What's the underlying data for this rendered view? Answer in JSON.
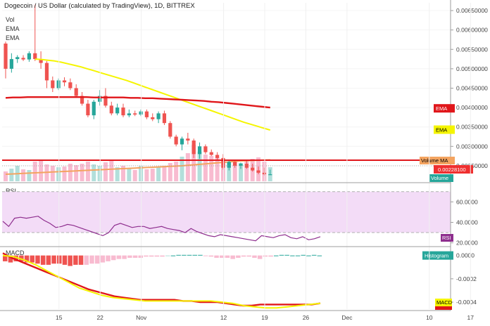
{
  "header": {
    "title": "Dogecoin / US Dollar (calculated by TradingView), 1D, BITTREX",
    "legend": [
      "Vol",
      "EMA",
      "EMA"
    ]
  },
  "colors": {
    "up": "#26a69a",
    "down": "#ef5350",
    "up_vol": "#b2dfdb",
    "down_vol": "#f8bbd0",
    "ema_fast": "#f5f500",
    "ema_slow": "#e0161a",
    "vol_ma": "#f4a460",
    "rsi": "#8e2e8e",
    "rsi_bg": "#f3dcf7",
    "macd": "#e0161a",
    "signal": "#f5f500"
  },
  "chart_data": [
    {
      "type": "candlestick",
      "title": "Dogecoin / US Dollar (calculated by TradingView), 1D, BITTREX",
      "y_ticks": [
        "0.00650000",
        "0.00600000",
        "0.00550000",
        "0.00500000",
        "0.00450000",
        "0.00400000",
        "0.00350000",
        "0.00300000",
        "0.00250000"
      ],
      "ylim": [
        0.0021,
        0.0067
      ],
      "x_ticks": [
        "15",
        "22",
        "Nov",
        "12",
        "19",
        "26",
        "Dec",
        "10",
        "17"
      ],
      "tags": {
        "ema1": "EMA",
        "ema2": "EMA",
        "volume_ma": "Volume MA",
        "price": "0.00228100",
        "volume": "Volume"
      },
      "candles": [
        [
          0.00565,
          0.0057,
          0.00475,
          0.005
        ],
        [
          0.005,
          0.0054,
          0.0049,
          0.00525
        ],
        [
          0.00525,
          0.00535,
          0.00515,
          0.0053
        ],
        [
          0.00528,
          0.00535,
          0.0052,
          0.00524
        ],
        [
          0.00524,
          0.00545,
          0.00518,
          0.0054
        ],
        [
          0.0054,
          0.00665,
          0.0052,
          0.00525
        ],
        [
          0.00525,
          0.00545,
          0.005,
          0.00515
        ],
        [
          0.00515,
          0.0052,
          0.0045,
          0.0047
        ],
        [
          0.0047,
          0.0048,
          0.0044,
          0.0045
        ],
        [
          0.0045,
          0.00475,
          0.00445,
          0.0047
        ],
        [
          0.0047,
          0.00478,
          0.00455,
          0.00465
        ],
        [
          0.00465,
          0.00475,
          0.00445,
          0.0045
        ],
        [
          0.0045,
          0.0046,
          0.00425,
          0.0043
        ],
        [
          0.0043,
          0.0044,
          0.00405,
          0.0041
        ],
        [
          0.0041,
          0.0042,
          0.00375,
          0.0038
        ],
        [
          0.0038,
          0.0042,
          0.0037,
          0.00415
        ],
        [
          0.00415,
          0.00445,
          0.00405,
          0.0043
        ],
        [
          0.0043,
          0.0045,
          0.004,
          0.00405
        ],
        [
          0.00405,
          0.00415,
          0.0038,
          0.00385
        ],
        [
          0.00385,
          0.0041,
          0.0038,
          0.004
        ],
        [
          0.004,
          0.0041,
          0.00375,
          0.0038
        ],
        [
          0.0038,
          0.00395,
          0.00375,
          0.00385
        ],
        [
          0.00385,
          0.00392,
          0.00378,
          0.00382
        ],
        [
          0.00382,
          0.00395,
          0.00378,
          0.0039
        ],
        [
          0.0039,
          0.00395,
          0.0037,
          0.00375
        ],
        [
          0.00375,
          0.00385,
          0.00365,
          0.0037
        ],
        [
          0.0037,
          0.0039,
          0.0036,
          0.00385
        ],
        [
          0.00385,
          0.00392,
          0.00355,
          0.0036
        ],
        [
          0.0036,
          0.00365,
          0.0032,
          0.00325
        ],
        [
          0.00325,
          0.0033,
          0.003,
          0.00305
        ],
        [
          0.00305,
          0.00325,
          0.0029,
          0.0032
        ],
        [
          0.0032,
          0.00335,
          0.00305,
          0.00315
        ],
        [
          0.00315,
          0.0032,
          0.0027,
          0.0028
        ],
        [
          0.0028,
          0.0031,
          0.00268,
          0.003
        ],
        [
          0.003,
          0.00305,
          0.0028,
          0.00285
        ],
        [
          0.00285,
          0.00292,
          0.00275,
          0.00278
        ],
        [
          0.00278,
          0.00285,
          0.00265,
          0.0027
        ],
        [
          0.0027,
          0.0028,
          0.0024,
          0.00245
        ],
        [
          0.00245,
          0.00265,
          0.00238,
          0.0026
        ],
        [
          0.0026,
          0.00262,
          0.00245,
          0.0025
        ],
        [
          0.0025,
          0.00258,
          0.00242,
          0.00255
        ],
        [
          0.00255,
          0.00265,
          0.00242,
          0.00245
        ],
        [
          0.00245,
          0.00255,
          0.00235,
          0.00238
        ],
        [
          0.00238,
          0.00248,
          0.00228,
          0.00232
        ],
        [
          0.00232,
          0.00245,
          0.00225,
          0.00228
        ],
        [
          0.00228,
          0.0024,
          0.00226,
          0.00228
        ]
      ],
      "ema_fast": [
        0.00525,
        0.00524,
        0.00522,
        0.0052,
        0.00517,
        0.00513,
        0.00509,
        0.00505,
        0.005,
        0.00495,
        0.0049,
        0.00485,
        0.0048,
        0.00475,
        0.0047,
        0.00464,
        0.00458,
        0.00452,
        0.00446,
        0.0044,
        0.00434,
        0.00428,
        0.00422,
        0.00416,
        0.0041,
        0.00404,
        0.00398,
        0.00392,
        0.00386,
        0.0038,
        0.00374,
        0.00368,
        0.00362,
        0.00357,
        0.00352,
        0.00347,
        0.00342
      ],
      "ema_slow": [
        0.00425,
        0.00426,
        0.00426,
        0.00427,
        0.00427,
        0.00427,
        0.00427,
        0.00427,
        0.00427,
        0.00427,
        0.00427,
        0.00427,
        0.00426,
        0.00426,
        0.00426,
        0.00426,
        0.00426,
        0.00425,
        0.00425,
        0.00424,
        0.00424,
        0.00423,
        0.00422,
        0.00421,
        0.0042,
        0.00419,
        0.00418,
        0.00417,
        0.00415,
        0.00414,
        0.00412,
        0.0041,
        0.00408,
        0.00406,
        0.00404,
        0.00402,
        0.004
      ]
    },
    {
      "type": "line",
      "title": "RSI",
      "y_ticks": [
        "60.0000",
        "40.0000",
        "20.0000"
      ],
      "ylim": [
        17,
        76
      ],
      "bands": [
        30,
        70
      ],
      "values": [
        41,
        36,
        44,
        45,
        44,
        45,
        46,
        42,
        39,
        35,
        36,
        38,
        37,
        35,
        33,
        31,
        29,
        27,
        30,
        37,
        39,
        37,
        35,
        36,
        36,
        34,
        35,
        36,
        34,
        33,
        32,
        30,
        34,
        31,
        29,
        27,
        26,
        28,
        27,
        26,
        25,
        24,
        23,
        22,
        27,
        26,
        25,
        27,
        28,
        25,
        24,
        26,
        23,
        24,
        26
      ]
    },
    {
      "type": "bar",
      "title": "MACD",
      "tags": {
        "histogram": "Histogram",
        "macd": "MACD"
      },
      "y_ticks": [
        "0.0000",
        "-0.0002",
        "-0.0004"
      ],
      "ylim": [
        -0.00046,
        7e-05
      ],
      "histogram": [
        -5e-05,
        -6e-05,
        -5e-05,
        -5e-05,
        -6e-05,
        -6e-05,
        -7e-05,
        -8e-05,
        -8e-05,
        -7e-05,
        -7e-05,
        -8e-05,
        -9e-05,
        -8e-05,
        -8e-05,
        -8e-05,
        -7e-05,
        -7e-05,
        -6e-05,
        -5e-05,
        -4e-05,
        -3e-05,
        -3e-05,
        -2e-05,
        -2e-05,
        -2e-05,
        -1e-05,
        -1e-05,
        -1e-05,
        -1e-05,
        0,
        0,
        5e-06,
        5e-06,
        5e-06,
        5e-06,
        5e-06,
        -5e-06,
        -1e-05,
        -2e-05,
        -2e-05,
        -2e-05,
        -3e-05,
        -2e-05,
        -1e-05,
        -1e-05,
        -2e-05,
        -3e-05,
        -1e-05,
        -1e-05,
        0,
        5e-06,
        5e-06,
        0,
        0,
        5e-06,
        0,
        5e-06,
        0
      ],
      "macd": [
        2e-05,
        -2e-05,
        -5e-05,
        -8e-05,
        -0.00011,
        -0.00014,
        -0.00017,
        -0.0002,
        -0.00023,
        -0.00026,
        -0.00029,
        -0.00031,
        -0.00033,
        -0.00035,
        -0.00036,
        -0.00037,
        -0.00038,
        -0.00038,
        -0.00038,
        -0.00038,
        -0.00038,
        -0.00039,
        -0.00039,
        -0.0004,
        -0.0004,
        -0.0004,
        -0.00041,
        -0.00042,
        -0.00043,
        -0.00043,
        -0.00042,
        -0.00042,
        -0.00042,
        -0.00042,
        -0.00042,
        -0.00042,
        -0.00042,
        -0.00041
      ],
      "signal": [
        0.0,
        -1e-05,
        -4e-05,
        -8e-05,
        -0.00013,
        -0.00018,
        -0.00023,
        -0.00028,
        -0.00031,
        -0.00034,
        -0.00036,
        -0.00037,
        -0.00038,
        -0.00039,
        -0.00039,
        -0.00039,
        -0.00039,
        -0.00039,
        -0.00039,
        -0.00039,
        -0.0004,
        -0.00041,
        -0.00043,
        -0.00044,
        -0.00045,
        -0.00045,
        -0.00044,
        -0.00043,
        -0.00042,
        -0.00041
      ]
    }
  ]
}
